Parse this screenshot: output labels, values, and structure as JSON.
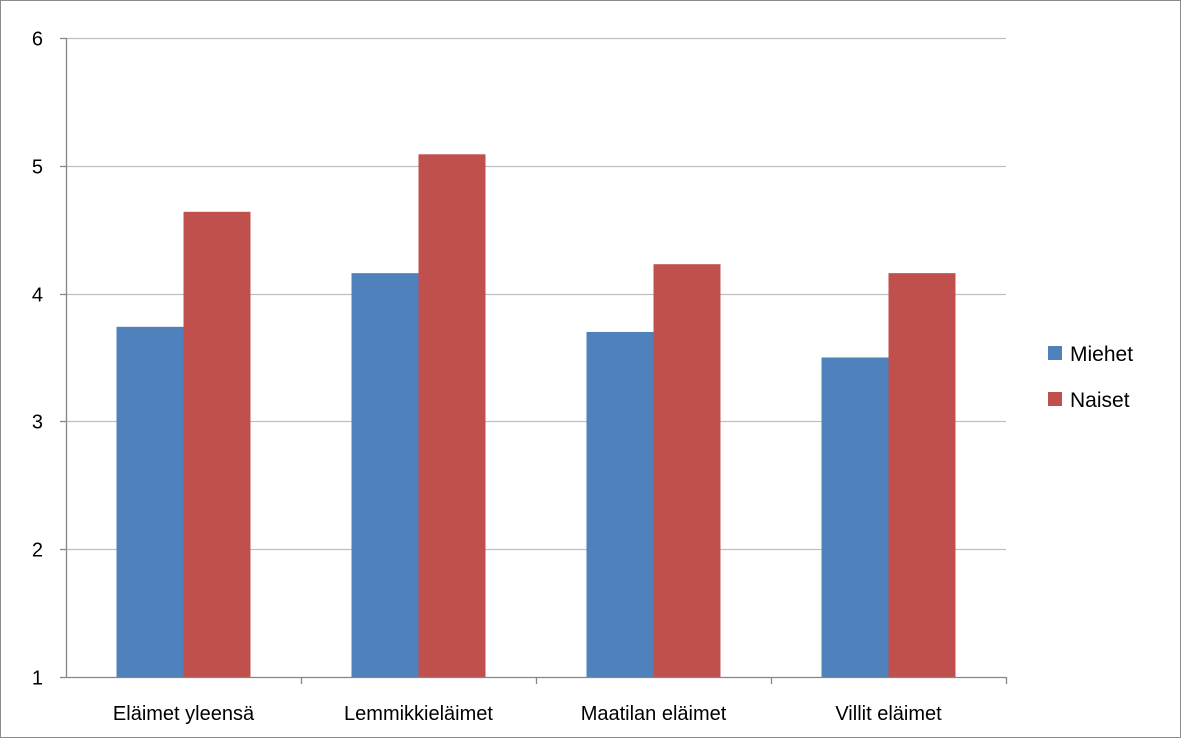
{
  "chart_data": {
    "type": "bar",
    "title": "",
    "xlabel": "",
    "ylabel": "",
    "categories": [
      "Eläimet yleensä",
      "Lemmikkieläimet",
      "Maatilan eläimet",
      "Villit eläimet"
    ],
    "series": [
      {
        "name": "Miehet",
        "color": "#4f81bd",
        "values": [
          3.74,
          4.16,
          3.7,
          3.5
        ]
      },
      {
        "name": "Naiset",
        "color": "#c0504d",
        "values": [
          4.64,
          5.09,
          4.23,
          4.16
        ]
      }
    ],
    "ylim": [
      1,
      6
    ],
    "yticks": [
      1,
      2,
      3,
      4,
      5,
      6
    ],
    "grid": true,
    "legend_position": "right",
    "colors": {
      "gridline": "#bfbfbf",
      "axis": "#868686",
      "frame": "#8c8c8c"
    }
  }
}
